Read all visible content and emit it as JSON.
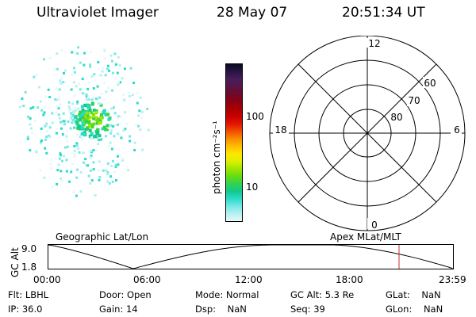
{
  "header": {
    "instrument": "Ultraviolet Imager",
    "date": "28 May 07",
    "time": "20:51:34 UT"
  },
  "colorbar": {
    "label": "photon cm⁻²s⁻¹",
    "tick_labels": [
      "100",
      "10"
    ],
    "colors": [
      "#0a0a1e",
      "#281446",
      "#461e5a",
      "#5a1446",
      "#6e0a28",
      "#8c0014",
      "#aa0000",
      "#c80000",
      "#e61400",
      "#f05000",
      "#fa8c00",
      "#ffbe00",
      "#ffe600",
      "#dcf000",
      "#a0e600",
      "#64dc14",
      "#32d250",
      "#14c88c",
      "#28dcc8",
      "#78e6e6",
      "#b4f0f0",
      "#e6f8f8"
    ]
  },
  "polar": {
    "hour_labels": [
      "12",
      "18",
      "6",
      "0"
    ],
    "lat_labels": [
      "60",
      "70",
      "80"
    ]
  },
  "timeline": {
    "left_label": "Geographic Lat/Lon",
    "right_label": "Apex MLat/MLT",
    "axis_title": "GC Alt",
    "y_ticks": [
      "9.0",
      "1.8"
    ],
    "x_ticks": [
      "00:00",
      "06:00",
      "12:00",
      "18:00",
      "23:59"
    ],
    "marker_color": "#c83232"
  },
  "status": {
    "row1": [
      {
        "label": "Flt:",
        "value": "LBHL"
      },
      {
        "label": "Door:",
        "value": "Open"
      },
      {
        "label": "Mode:",
        "value": "Normal"
      },
      {
        "label": "GC Alt:",
        "value": "5.3 Re"
      },
      {
        "label": "GLat:",
        "value": "NaN"
      }
    ],
    "row2": [
      {
        "label": "IP:",
        "value": "36.0"
      },
      {
        "label": "Gain:",
        "value": "14"
      },
      {
        "label": "Dsp:",
        "value": "NaN"
      },
      {
        "label": "Seq:",
        "value": "39"
      },
      {
        "label": "GLon:",
        "value": "NaN"
      }
    ]
  }
}
